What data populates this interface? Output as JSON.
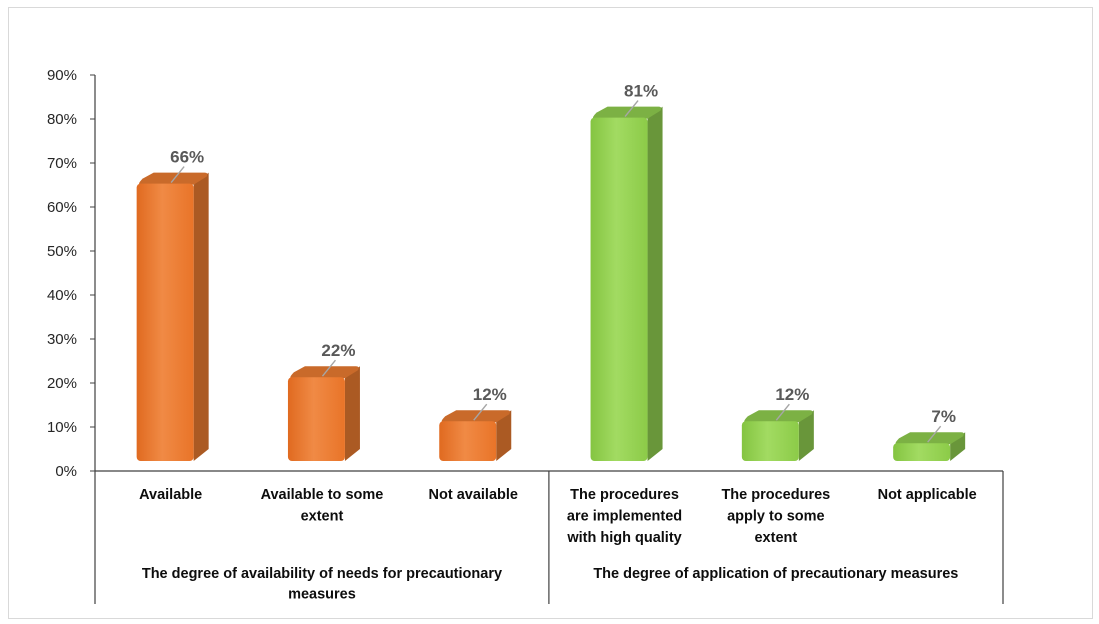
{
  "chart_data": {
    "type": "bar",
    "title": "",
    "xlabel": "",
    "ylabel": "",
    "ylim": [
      0,
      90
    ],
    "y_ticks": [
      "0%",
      "10%",
      "20%",
      "30%",
      "40%",
      "50%",
      "60%",
      "70%",
      "80%",
      "90%"
    ],
    "y_tick_values": [
      0,
      10,
      20,
      30,
      40,
      50,
      60,
      70,
      80,
      90
    ],
    "grid": false,
    "groups": [
      {
        "label": [
          "The degree of availability of needs for precautionary",
          "measures"
        ],
        "color": "#ED7D31",
        "categories": [
          {
            "label": [
              "Available"
            ],
            "value": 66,
            "data_label": "66%"
          },
          {
            "label": [
              "Available to some",
              "extent"
            ],
            "value": 22,
            "data_label": "22%"
          },
          {
            "label": [
              "Not available"
            ],
            "value": 12,
            "data_label": "12%"
          }
        ]
      },
      {
        "label": [
          "The degree of application of precautionary measures"
        ],
        "color": "#92D050",
        "categories": [
          {
            "label": [
              "The procedures",
              "are implemented",
              "with high quality"
            ],
            "value": 81,
            "data_label": "81%"
          },
          {
            "label": [
              "The procedures",
              "apply to some",
              "extent"
            ],
            "value": 12,
            "data_label": "12%"
          },
          {
            "label": [
              "Not applicable"
            ],
            "value": 7,
            "data_label": "7%"
          }
        ]
      }
    ]
  }
}
